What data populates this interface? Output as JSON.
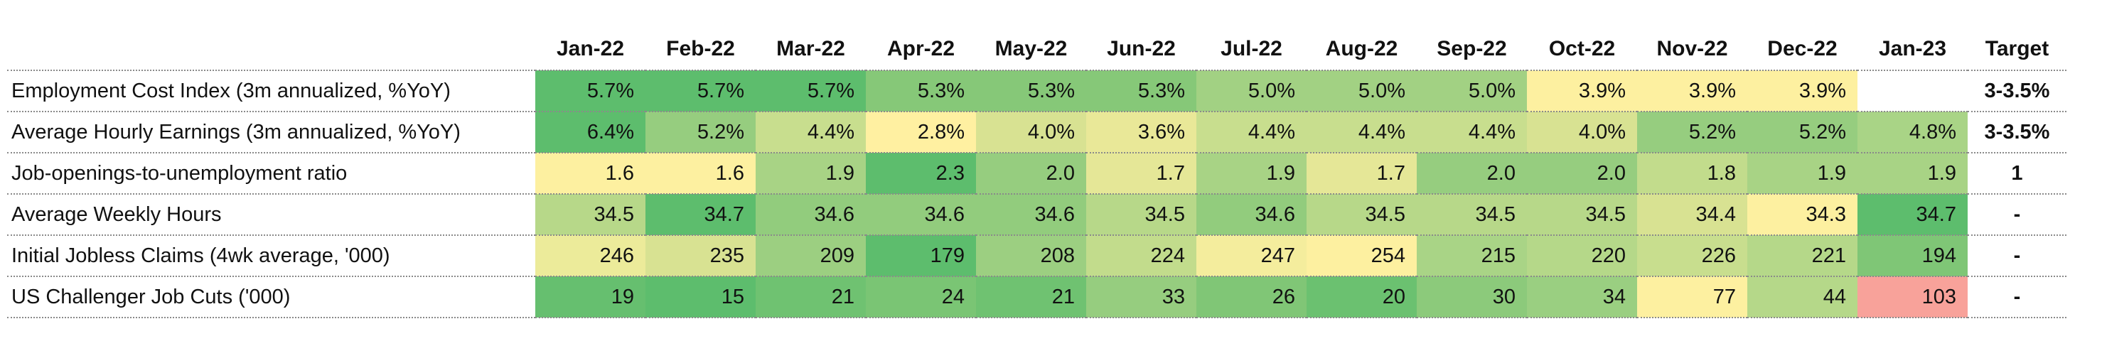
{
  "header": {
    "label": "",
    "months": [
      "Jan-22",
      "Feb-22",
      "Mar-22",
      "Apr-22",
      "May-22",
      "Jun-22",
      "Jul-22",
      "Aug-22",
      "Sep-22",
      "Oct-22",
      "Nov-22",
      "Dec-22",
      "Jan-23"
    ],
    "target": "Target"
  },
  "rows": [
    {
      "label": "Employment Cost Index (3m annualized, %YoY)",
      "values": [
        "5.7%",
        "5.7%",
        "5.7%",
        "5.3%",
        "5.3%",
        "5.3%",
        "5.0%",
        "5.0%",
        "5.0%",
        "3.9%",
        "3.9%",
        "3.9%",
        ""
      ],
      "colors": [
        "#5dbd6d",
        "#5dbd6d",
        "#5dbd6d",
        "#86c878",
        "#86c878",
        "#86c878",
        "#a2d183",
        "#a2d183",
        "#a2d183",
        "#fdf0a0",
        "#fdf0a0",
        "#fdf0a0",
        "#ffffff"
      ],
      "target": "3-3.5%"
    },
    {
      "label": "Average Hourly Earnings (3m annualized, %YoY)",
      "values": [
        "6.4%",
        "5.2%",
        "4.4%",
        "2.8%",
        "4.0%",
        "3.6%",
        "4.4%",
        "4.4%",
        "4.4%",
        "4.0%",
        "5.2%",
        "5.2%",
        "4.8%"
      ],
      "colors": [
        "#5dbd6d",
        "#96cd7f",
        "#c8de8e",
        "#fff0a1",
        "#d8e292",
        "#e9e898",
        "#c8de8e",
        "#c8de8e",
        "#c8de8e",
        "#d8e292",
        "#96cd7f",
        "#96cd7f",
        "#a9d486"
      ],
      "target": "3-3.5%"
    },
    {
      "label": "Job-openings-to-unemployment ratio",
      "values": [
        "1.6",
        "1.6",
        "1.9",
        "2.3",
        "2.0",
        "1.7",
        "1.9",
        "1.7",
        "2.0",
        "2.0",
        "1.8",
        "1.9",
        "1.9"
      ],
      "colors": [
        "#fdf0a0",
        "#fdf0a0",
        "#a8d385",
        "#5dbd6d",
        "#96cd7f",
        "#e5e797",
        "#a8d385",
        "#e5e797",
        "#96cd7f",
        "#96cd7f",
        "#c2dc8c",
        "#a8d385",
        "#a8d385"
      ],
      "target": "1"
    },
    {
      "label": "Average Weekly Hours",
      "values": [
        "34.5",
        "34.7",
        "34.6",
        "34.6",
        "34.6",
        "34.5",
        "34.6",
        "34.5",
        "34.5",
        "34.5",
        "34.4",
        "34.3",
        "34.7"
      ],
      "colors": [
        "#b7d889",
        "#5dbd6d",
        "#92cc7d",
        "#92cc7d",
        "#92cc7d",
        "#b7d889",
        "#92cc7d",
        "#b7d889",
        "#b7d889",
        "#b7d889",
        "#d8e292",
        "#fdf0a0",
        "#5dbd6d"
      ],
      "target": "-"
    },
    {
      "label": "Initial Jobless Claims (4wk average, '000)",
      "values": [
        "246",
        "235",
        "209",
        "179",
        "208",
        "224",
        "247",
        "254",
        "215",
        "220",
        "226",
        "221",
        "194"
      ],
      "colors": [
        "#eceb9a",
        "#d8e292",
        "#9ccf81",
        "#5dbd6d",
        "#9ccf81",
        "#c2dc8c",
        "#f4ed9d",
        "#fdf0a0",
        "#a9d486",
        "#b5d889",
        "#c8de8e",
        "#b5d889",
        "#7fc676"
      ],
      "target": "-"
    },
    {
      "label": "US Challenger Job Cuts ('000)",
      "values": [
        "19",
        "15",
        "21",
        "24",
        "21",
        "33",
        "26",
        "20",
        "30",
        "34",
        "77",
        "44",
        "103"
      ],
      "colors": [
        "#66bf6f",
        "#5dbd6d",
        "#6fc271",
        "#7ac574",
        "#6fc271",
        "#96cd7f",
        "#80c676",
        "#6bc170",
        "#8cca7b",
        "#9acf81",
        "#fdf0a0",
        "#b5d889",
        "#f8a29a"
      ],
      "target": "-"
    }
  ]
}
